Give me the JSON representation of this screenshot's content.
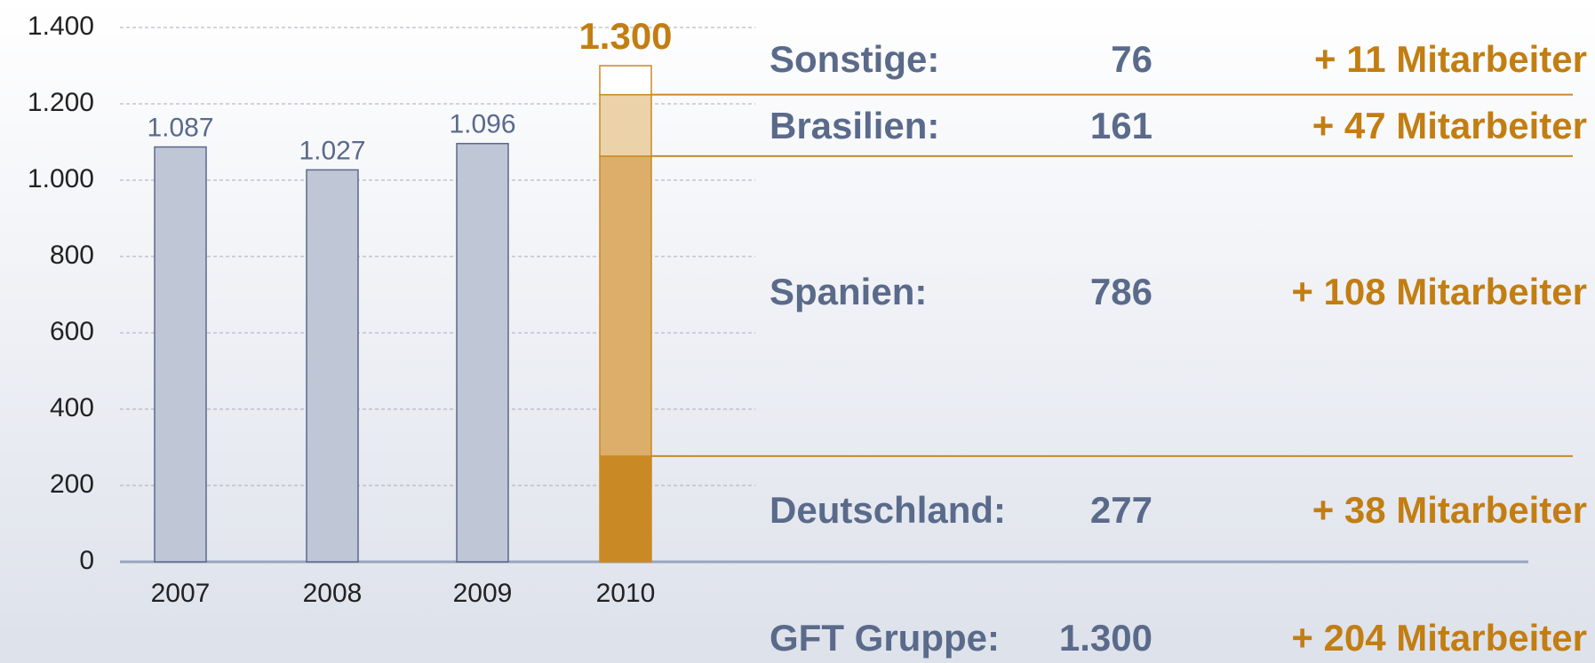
{
  "chart_data": {
    "type": "bar",
    "categories": [
      "2007",
      "2008",
      "2009",
      "2010"
    ],
    "values": [
      1087,
      1027,
      1096,
      null
    ],
    "value_labels": [
      "1.087",
      "1.027",
      "1.096",
      null
    ],
    "color": "#bfc6d6",
    "ylim": [
      0,
      1400
    ],
    "yticks": [
      0,
      200,
      400,
      600,
      800,
      {
        "value": 1000,
        "label": "1.000"
      },
      {
        "value": 1200,
        "label": "1.200"
      },
      {
        "value": 1400,
        "label": "1.400"
      }
    ],
    "grid": true,
    "stack": [
      {
        "name": "Deutschland:",
        "value": 277,
        "value_label": "277",
        "change": "+ 38 Mitarbeiter",
        "color": "#c98a25"
      },
      {
        "name": "Spanien:",
        "value": 786,
        "value_label": "786",
        "change": "+ 108 Mitarbeiter",
        "color": "#dcae6a"
      },
      {
        "name": "Brasilien:",
        "value": 161,
        "value_label": "161",
        "change": "+ 47 Mitarbeiter",
        "color": "#ecd2a8"
      },
      {
        "name": "Sonstige:",
        "value": 76,
        "value_label": "76",
        "change": "+ 11 Mitarbeiter",
        "color": "#ffffff"
      }
    ],
    "total": {
      "name": "GFT Gruppe:",
      "value": 1300,
      "value_label": "1.300",
      "change": "+ 204 Mitarbeiter"
    }
  }
}
